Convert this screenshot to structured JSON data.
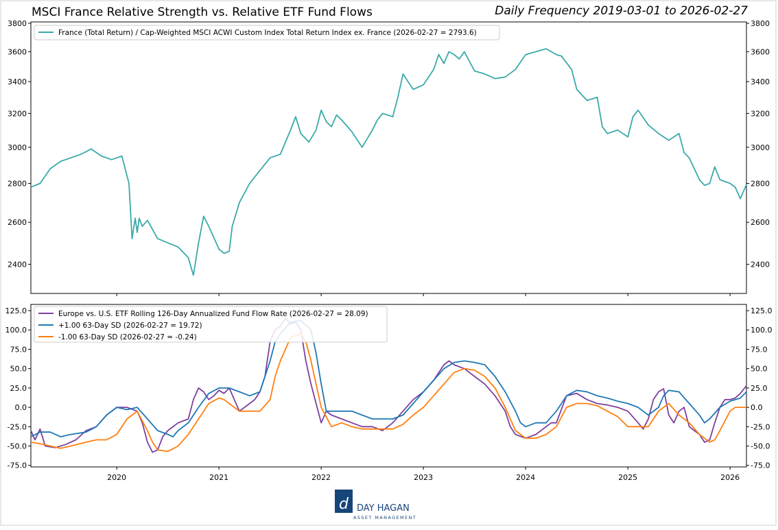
{
  "chart_data": {
    "type": "line",
    "title": "MSCI France Relative Strength vs. Relative ETF Fund Flows",
    "subtitle": "Daily Frequency 2019-03-01 to 2026-02-27",
    "x_range": [
      2019.16,
      2026.16
    ],
    "x_tick_labels": [
      "2020",
      "2021",
      "2022",
      "2023",
      "2024",
      "2025",
      "2026"
    ],
    "x_tick_values": [
      2020,
      2021,
      2022,
      2023,
      2024,
      2025,
      2026
    ],
    "panels": [
      {
        "name": "relative-strength",
        "ylim": [
          2270,
          3810
        ],
        "y_scale": "log",
        "y_ticks": [
          2400,
          2600,
          2800,
          3000,
          3200,
          3400,
          3600,
          3800
        ],
        "legend_position": "top-left",
        "series": [
          {
            "name": "France (Total Return) / Cap-Weighted MSCI ACWI Custom Index Total Return Index ex. France (2026-02-27 = 2793.6)",
            "color": "#3aa9a9",
            "x": [
              2019.16,
              2019.25,
              2019.35,
              2019.45,
              2019.55,
              2019.65,
              2019.75,
              2019.85,
              2019.95,
              2020.05,
              2020.12,
              2020.15,
              2020.18,
              2020.2,
              2020.22,
              2020.25,
              2020.3,
              2020.4,
              2020.5,
              2020.6,
              2020.7,
              2020.75,
              2020.8,
              2020.85,
              2020.9,
              2021.0,
              2021.05,
              2021.1,
              2021.13,
              2021.2,
              2021.3,
              2021.4,
              2021.5,
              2021.6,
              2021.7,
              2021.75,
              2021.8,
              2021.88,
              2021.95,
              2022.0,
              2022.05,
              2022.1,
              2022.15,
              2022.2,
              2022.3,
              2022.4,
              2022.5,
              2022.55,
              2022.6,
              2022.7,
              2022.75,
              2022.8,
              2022.85,
              2022.9,
              2023.0,
              2023.1,
              2023.15,
              2023.2,
              2023.25,
              2023.3,
              2023.35,
              2023.4,
              2023.5,
              2023.6,
              2023.7,
              2023.8,
              2023.9,
              2024.0,
              2024.1,
              2024.2,
              2024.3,
              2024.35,
              2024.45,
              2024.5,
              2024.6,
              2024.7,
              2024.75,
              2024.8,
              2024.9,
              2025.0,
              2025.05,
              2025.1,
              2025.2,
              2025.3,
              2025.4,
              2025.5,
              2025.55,
              2025.6,
              2025.7,
              2025.75,
              2025.8,
              2025.85,
              2025.9,
              2026.0,
              2026.05,
              2026.1,
              2026.16
            ],
            "values": [
              2780,
              2800,
              2880,
              2920,
              2940,
              2960,
              2990,
              2950,
              2930,
              2950,
              2800,
              2520,
              2620,
              2550,
              2620,
              2580,
              2610,
              2520,
              2500,
              2480,
              2430,
              2350,
              2500,
              2630,
              2580,
              2470,
              2450,
              2460,
              2580,
              2700,
              2800,
              2870,
              2940,
              2960,
              3100,
              3180,
              3080,
              3030,
              3100,
              3220,
              3150,
              3120,
              3190,
              3160,
              3090,
              3000,
              3100,
              3160,
              3200,
              3180,
              3300,
              3450,
              3400,
              3350,
              3380,
              3480,
              3580,
              3520,
              3600,
              3580,
              3550,
              3600,
              3470,
              3450,
              3420,
              3430,
              3480,
              3580,
              3600,
              3620,
              3580,
              3570,
              3480,
              3350,
              3280,
              3300,
              3120,
              3080,
              3100,
              3060,
              3180,
              3220,
              3130,
              3080,
              3040,
              3080,
              2970,
              2940,
              2820,
              2790,
              2800,
              2890,
              2820,
              2800,
              2780,
              2720,
              2794
            ]
          }
        ]
      },
      {
        "name": "fund-flow",
        "ylim": [
          -77,
          133
        ],
        "y_ticks": [
          -75.0,
          -50.0,
          -25.0,
          0.0,
          25.0,
          50.0,
          75.0,
          100.0,
          125.0
        ],
        "y_tick_labels": [
          "-75.0",
          "-50.0",
          "-25.0",
          "0.0",
          "25.0",
          "50.0",
          "75.0",
          "100.0",
          "125.0"
        ],
        "legend_position": "top-left",
        "series": [
          {
            "name": "Europe vs. U.S. ETF Rolling 126-Day Annualized Fund Flow Rate (2026-02-27 = 28.09)",
            "color": "#7b3fa0",
            "x": [
              2019.16,
              2019.2,
              2019.25,
              2019.3,
              2019.4,
              2019.5,
              2019.6,
              2019.7,
              2019.8,
              2019.9,
              2020.0,
              2020.1,
              2020.2,
              2020.25,
              2020.3,
              2020.35,
              2020.4,
              2020.45,
              2020.5,
              2020.6,
              2020.7,
              2020.75,
              2020.8,
              2020.85,
              2020.9,
              2020.95,
              2021.0,
              2021.05,
              2021.1,
              2021.15,
              2021.2,
              2021.25,
              2021.3,
              2021.35,
              2021.4,
              2021.45,
              2021.5,
              2021.55,
              2021.6,
              2021.65,
              2021.7,
              2021.75,
              2021.8,
              2021.85,
              2021.9,
              2021.95,
              2022.0,
              2022.05,
              2022.1,
              2022.2,
              2022.3,
              2022.4,
              2022.5,
              2022.6,
              2022.7,
              2022.8,
              2022.9,
              2023.0,
              2023.1,
              2023.2,
              2023.25,
              2023.3,
              2023.4,
              2023.5,
              2023.6,
              2023.7,
              2023.8,
              2023.85,
              2023.9,
              2024.0,
              2024.1,
              2024.2,
              2024.25,
              2024.3,
              2024.4,
              2024.5,
              2024.6,
              2024.7,
              2024.8,
              2024.9,
              2025.0,
              2025.1,
              2025.15,
              2025.2,
              2025.25,
              2025.3,
              2025.35,
              2025.4,
              2025.45,
              2025.5,
              2025.55,
              2025.6,
              2025.65,
              2025.7,
              2025.75,
              2025.8,
              2025.85,
              2025.9,
              2025.95,
              2026.0,
              2026.05,
              2026.1,
              2026.16
            ],
            "values": [
              -30,
              -42,
              -28,
              -50,
              -52,
              -48,
              -42,
              -30,
              -25,
              -10,
              0,
              0,
              -5,
              -20,
              -45,
              -58,
              -55,
              -38,
              -30,
              -20,
              -15,
              10,
              25,
              20,
              10,
              15,
              22,
              18,
              25,
              10,
              -5,
              0,
              5,
              10,
              20,
              40,
              85,
              100,
              105,
              115,
              108,
              110,
              100,
              60,
              30,
              5,
              -20,
              -5,
              -10,
              -15,
              -20,
              -25,
              -25,
              -30,
              -20,
              -5,
              10,
              20,
              35,
              55,
              60,
              55,
              50,
              40,
              30,
              15,
              -5,
              -25,
              -35,
              -40,
              -35,
              -25,
              -20,
              -20,
              15,
              18,
              10,
              5,
              3,
              0,
              -5,
              -20,
              -28,
              -15,
              10,
              20,
              24,
              -10,
              -20,
              -5,
              0,
              -25,
              -30,
              -35,
              -45,
              -42,
              -20,
              0,
              10,
              10,
              12,
              18,
              28
            ]
          },
          {
            "name": "+1.00 63-Day SD (2026-02-27 = 19.72)",
            "color": "#1f77b4",
            "x": [
              2019.16,
              2019.25,
              2019.35,
              2019.45,
              2019.55,
              2019.7,
              2019.8,
              2019.9,
              2020.0,
              2020.1,
              2020.2,
              2020.3,
              2020.4,
              2020.5,
              2020.55,
              2020.6,
              2020.7,
              2020.8,
              2020.9,
              2021.0,
              2021.1,
              2021.2,
              2021.3,
              2021.4,
              2021.5,
              2021.55,
              2021.6,
              2021.7,
              2021.8,
              2021.9,
              2021.95,
              2022.0,
              2022.05,
              2022.15,
              2022.3,
              2022.4,
              2022.5,
              2022.6,
              2022.7,
              2022.8,
              2022.9,
              2023.0,
              2023.1,
              2023.2,
              2023.3,
              2023.4,
              2023.5,
              2023.6,
              2023.7,
              2023.8,
              2023.9,
              2023.95,
              2024.0,
              2024.1,
              2024.2,
              2024.3,
              2024.4,
              2024.5,
              2024.6,
              2024.7,
              2024.8,
              2024.9,
              2025.0,
              2025.1,
              2025.15,
              2025.2,
              2025.3,
              2025.35,
              2025.4,
              2025.5,
              2025.6,
              2025.7,
              2025.75,
              2025.8,
              2025.9,
              2026.0,
              2026.1,
              2026.16
            ],
            "values": [
              -38,
              -32,
              -32,
              -38,
              -35,
              -32,
              -25,
              -10,
              0,
              -3,
              0,
              -15,
              -30,
              -35,
              -38,
              -30,
              -20,
              0,
              18,
              25,
              25,
              20,
              15,
              20,
              60,
              85,
              95,
              110,
              112,
              100,
              70,
              30,
              -5,
              -5,
              -5,
              -10,
              -15,
              -15,
              -15,
              -10,
              5,
              20,
              35,
              50,
              58,
              60,
              58,
              55,
              40,
              20,
              -5,
              -20,
              -25,
              -20,
              -20,
              -5,
              15,
              22,
              20,
              15,
              12,
              8,
              5,
              0,
              -5,
              -10,
              0,
              15,
              22,
              20,
              5,
              -10,
              -20,
              -15,
              0,
              8,
              12,
              20
            ]
          },
          {
            "name": "-1.00 63-Day SD (2026-02-27 = -0.24)",
            "color": "#ff7f0e",
            "x": [
              2019.16,
              2019.25,
              2019.35,
              2019.45,
              2019.55,
              2019.7,
              2019.8,
              2019.9,
              2020.0,
              2020.1,
              2020.2,
              2020.3,
              2020.35,
              2020.4,
              2020.5,
              2020.6,
              2020.7,
              2020.8,
              2020.9,
              2021.0,
              2021.05,
              2021.15,
              2021.2,
              2021.3,
              2021.4,
              2021.5,
              2021.55,
              2021.6,
              2021.7,
              2021.8,
              2021.85,
              2021.9,
              2021.95,
              2022.0,
              2022.1,
              2022.2,
              2022.3,
              2022.4,
              2022.5,
              2022.6,
              2022.7,
              2022.8,
              2022.9,
              2023.0,
              2023.1,
              2023.2,
              2023.3,
              2023.4,
              2023.5,
              2023.6,
              2023.7,
              2023.8,
              2023.9,
              2024.0,
              2024.1,
              2024.2,
              2024.3,
              2024.4,
              2024.5,
              2024.6,
              2024.7,
              2024.8,
              2024.9,
              2025.0,
              2025.1,
              2025.2,
              2025.3,
              2025.4,
              2025.5,
              2025.6,
              2025.7,
              2025.8,
              2025.85,
              2025.9,
              2026.0,
              2026.05,
              2026.1,
              2026.16
            ],
            "values": [
              -45,
              -47,
              -50,
              -53,
              -50,
              -45,
              -42,
              -42,
              -35,
              -15,
              -5,
              -30,
              -45,
              -55,
              -57,
              -50,
              -35,
              -15,
              5,
              12,
              10,
              0,
              -5,
              -5,
              -5,
              10,
              40,
              60,
              90,
              95,
              85,
              60,
              30,
              0,
              -25,
              -20,
              -25,
              -28,
              -28,
              -28,
              -28,
              -22,
              -10,
              0,
              15,
              30,
              45,
              50,
              48,
              40,
              25,
              0,
              -30,
              -40,
              -40,
              -35,
              -25,
              0,
              5,
              5,
              2,
              -5,
              -12,
              -25,
              -25,
              -25,
              -5,
              5,
              -10,
              -20,
              -35,
              -45,
              -42,
              -30,
              -5,
              0,
              0,
              0
            ]
          }
        ]
      }
    ],
    "logo": {
      "name": "DAY HAGAN",
      "tagline": "ASSET MANAGEMENT"
    }
  }
}
